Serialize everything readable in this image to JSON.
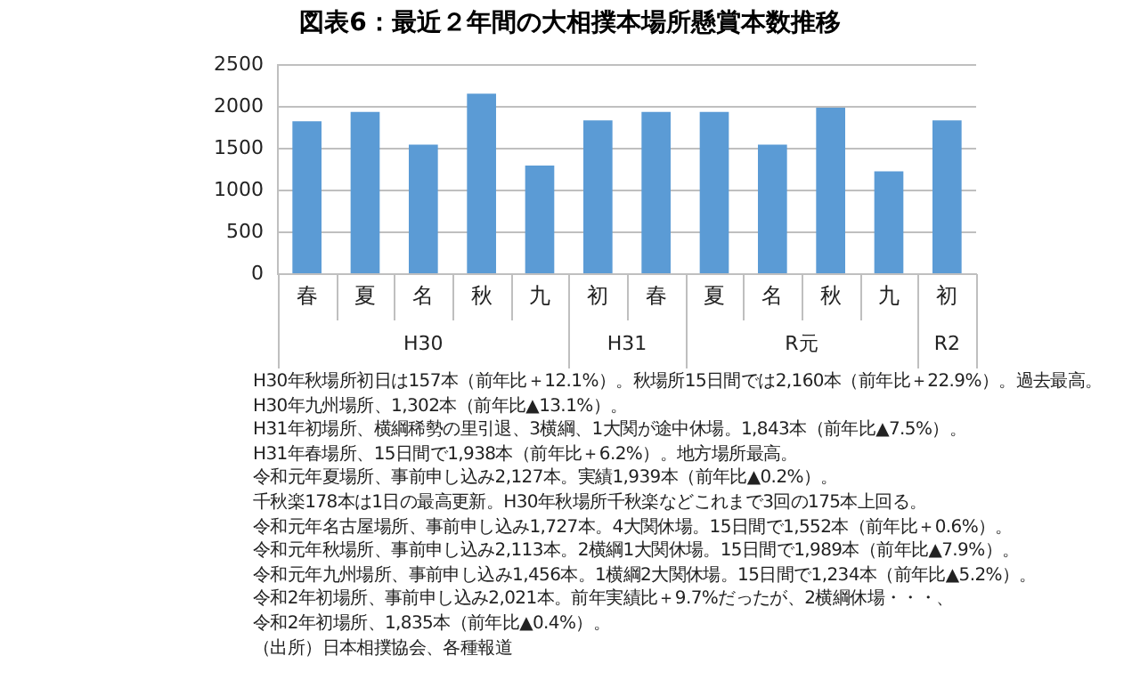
{
  "chart_data": {
    "type": "bar",
    "title": "図表6：最近２年間の大相撲本場所懸賞本数推移",
    "categories": [
      "春",
      "夏",
      "名",
      "秋",
      "九",
      "初",
      "春",
      "夏",
      "名",
      "秋",
      "九",
      "初"
    ],
    "values": [
      1830,
      1940,
      1550,
      2160,
      1300,
      1840,
      1940,
      1940,
      1550,
      1990,
      1230,
      1840
    ],
    "color": "#5b9bd5",
    "ylim": [
      0,
      2500
    ],
    "yticks": [
      0,
      500,
      1000,
      1500,
      2000,
      2500
    ],
    "grid": "y",
    "annotations": [
      "H30",
      "H31",
      "R元",
      "R2",
      "H30年秋場所初日は157本（前年比＋12.1%）。秋場所15日間では2,160本（前年比＋22.9%）。過去最高。",
      "H30年九州場所、1,302本（前年比▲13.1%）。",
      "H31年初場所、横綱稀勢の里引退、3横綱、1大関が途中休場。1,843本（前年比▲7.5%）。",
      "H31年春場所、15日間で1,938本（前年比＋6.2%）。地方場所最高。",
      "令和元年夏場所、事前申し込み2,127本。実績1,939本（前年比▲0.2%）。",
      "千秋楽178本は1日の最高更新。H30年秋場所千秋楽などこれまで3回の175本上回る。",
      "令和元年名古屋場所、事前申し込み1,727本。4大関休場。15日間で1,552本（前年比＋0.6%）。",
      "令和元年秋場所、事前申し込み2,113本。2横綱1大関休場。15日間で1,989本（前年比▲7.9%）。",
      "令和元年九州場所、事前申し込み1,456本。1横綱2大関休場。15日間で1,234本（前年比▲5.2%）。",
      "令和2年初場所、事前申し込み2,021本。前年実績比＋9.7%だったが、2横綱休場・・・、",
      "令和2年初場所、1,835本（前年比▲0.4%）。",
      "（出所）日本相撲協会、各種報道"
    ]
  }
}
